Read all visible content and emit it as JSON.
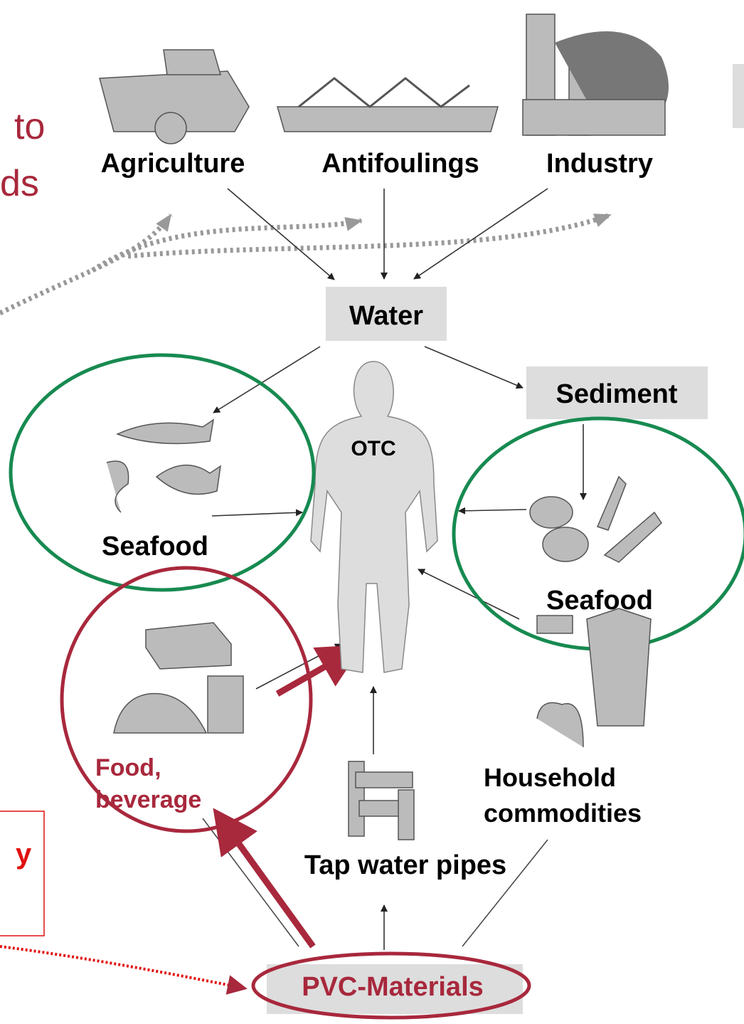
{
  "cropped_text": [
    "to",
    "ds",
    "y"
  ],
  "sources": [
    "Agriculture",
    "Antifoulings",
    "Industry"
  ],
  "water": "Water",
  "sediment": "Sediment",
  "body": "OTC",
  "seafood_left": "Seafood",
  "seafood_right": "Seafood",
  "food": [
    "Food,",
    "beverage"
  ],
  "household": [
    "Household",
    "commodities"
  ],
  "tap": "Tap water pipes",
  "pvc": "PVC-Materials"
}
